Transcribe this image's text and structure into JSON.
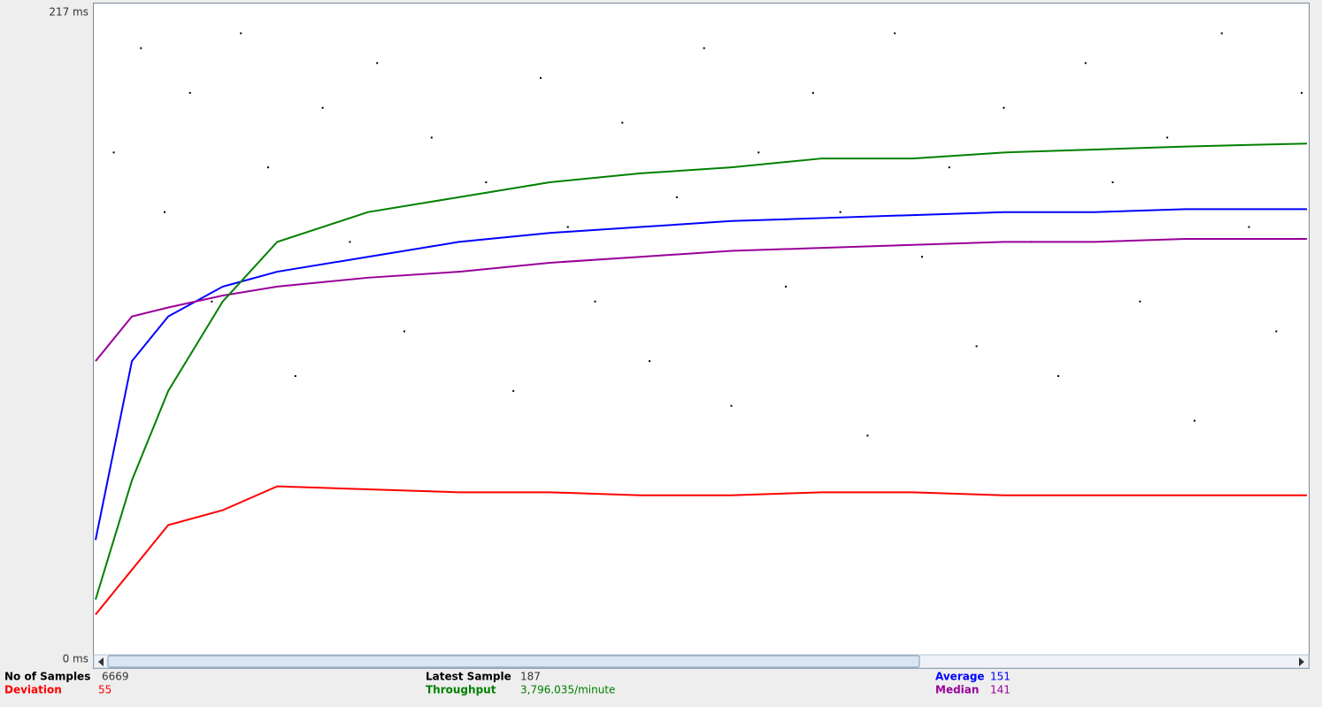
{
  "chart_data": {
    "type": "line",
    "ylim": [
      0,
      217
    ],
    "yticks": [
      {
        "value": 217,
        "label": "217 ms"
      },
      {
        "value": 0,
        "label": "0 ms"
      }
    ],
    "xlim": [
      0,
      6669
    ],
    "grid": false,
    "x": [
      0,
      200,
      400,
      700,
      1000,
      1500,
      2000,
      2500,
      3000,
      3500,
      4000,
      4500,
      5000,
      5500,
      6000,
      6669
    ],
    "series": [
      {
        "name": "Average",
        "color": "#0000ff",
        "summary": "151",
        "values": [
          40,
          100,
          115,
          125,
          130,
          135,
          140,
          143,
          145,
          147,
          148,
          149,
          150,
          150,
          151,
          151
        ]
      },
      {
        "name": "Median",
        "color": "#990099",
        "summary": "141",
        "values": [
          100,
          115,
          118,
          122,
          125,
          128,
          130,
          133,
          135,
          137,
          138,
          139,
          140,
          140,
          141,
          141
        ]
      },
      {
        "name": "Deviation",
        "color": "#ff0000",
        "summary": "55",
        "values": [
          15,
          30,
          45,
          50,
          58,
          57,
          56,
          56,
          55,
          55,
          56,
          56,
          55,
          55,
          55,
          55
        ]
      },
      {
        "name": "Throughput",
        "color": "#008000",
        "summary": "3,796.035/minute",
        "values": [
          20,
          60,
          90,
          120,
          140,
          150,
          155,
          160,
          163,
          165,
          168,
          168,
          170,
          171,
          172,
          173
        ]
      }
    ],
    "points": {
      "color": "#000000",
      "x": [
        100,
        250,
        380,
        520,
        640,
        800,
        950,
        1100,
        1250,
        1400,
        1550,
        1700,
        1850,
        2000,
        2150,
        2300,
        2450,
        2600,
        2750,
        2900,
        3050,
        3200,
        3350,
        3500,
        3650,
        3800,
        3950,
        4100,
        4250,
        4400,
        4550,
        4700,
        4850,
        5000,
        5150,
        5300,
        5450,
        5600,
        5750,
        5900,
        6050,
        6200,
        6350,
        6500,
        6640
      ],
      "y": [
        170,
        205,
        150,
        190,
        120,
        210,
        165,
        95,
        185,
        140,
        200,
        110,
        175,
        130,
        160,
        90,
        195,
        145,
        120,
        180,
        100,
        155,
        205,
        85,
        170,
        125,
        190,
        150,
        75,
        210,
        135,
        165,
        105,
        185,
        140,
        95,
        200,
        160,
        120,
        175,
        80,
        210,
        145,
        110,
        190
      ]
    },
    "latest_sample": {
      "label": "Latest Sample",
      "value": "187"
    },
    "no_of_samples": {
      "label": "No of Samples",
      "value": "6669"
    }
  }
}
